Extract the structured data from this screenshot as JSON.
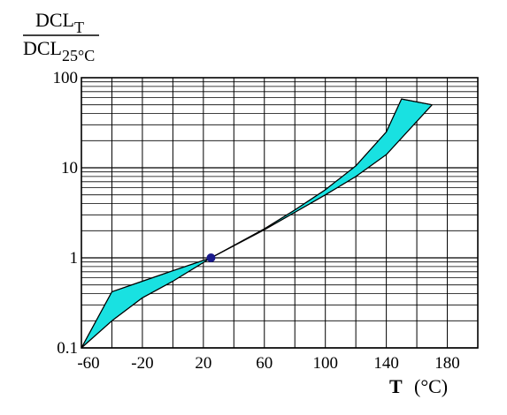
{
  "chart_data": {
    "type": "area",
    "ylabel": {
      "numerator": "DCL",
      "numerator_sub": "T",
      "denominator": "DCL",
      "denominator_sub": "25°C"
    },
    "xlabel": {
      "symbol": "T",
      "unit": "(°C)"
    },
    "x_axis": {
      "range": [
        -60,
        200
      ],
      "ticks": [
        -60,
        -20,
        20,
        60,
        100,
        140,
        180
      ],
      "tick_labels": [
        "-60",
        "-20",
        "20",
        "60",
        "100",
        "140",
        "180"
      ],
      "major_grid_step": 20
    },
    "y_axis": {
      "scale": "log",
      "range": [
        0.1,
        100
      ],
      "ticks": [
        0.1,
        1,
        10,
        100
      ],
      "tick_labels": [
        "0.1",
        "1",
        "10",
        "100"
      ],
      "minor_grid": [
        2,
        3,
        4,
        5,
        6,
        7,
        8,
        9
      ]
    },
    "grid": true,
    "band_color": "#19e1e1",
    "reference_point": {
      "x": 25,
      "y": 1,
      "color": "#1a1a8c"
    },
    "series": [
      {
        "role": "upper",
        "x": [
          -60,
          -40,
          -20,
          0,
          25,
          60,
          80,
          100,
          120,
          140,
          150,
          170
        ],
        "y": [
          0.1,
          0.42,
          0.55,
          0.72,
          1.0,
          2.1,
          3.4,
          5.7,
          10.5,
          25,
          58,
          50
        ]
      },
      {
        "role": "lower",
        "x": [
          -60,
          -40,
          -20,
          0,
          25,
          60,
          80,
          100,
          120,
          140,
          170
        ],
        "y": [
          0.1,
          0.2,
          0.36,
          0.55,
          1.0,
          2.05,
          3.2,
          5.0,
          8.0,
          14,
          50
        ]
      }
    ]
  }
}
